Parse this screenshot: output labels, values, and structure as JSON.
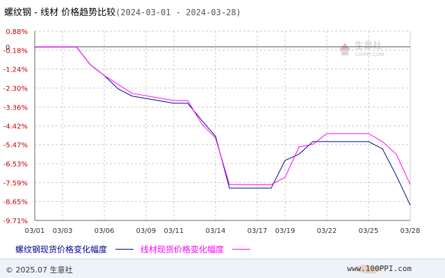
{
  "title": {
    "product": "螺纹钢",
    "separator": " - ",
    "subject": "线材",
    "topic": "价格趋势比较",
    "range": "(2024-03-01 - 2024-03-28)"
  },
  "watermark": {
    "brand": "生意社",
    "url": "100PPI.COM"
  },
  "footer": {
    "copyright": "© 2025.07 生意社",
    "site": "www.100PPI.com"
  },
  "colors": {
    "series1": "#00008b",
    "series2": "#ff00ff",
    "tick_red": "#cc0000",
    "grid": "#c8c8c8"
  },
  "chart_data": {
    "type": "line",
    "x": [
      "03/01",
      "03/04",
      "03/05",
      "03/06",
      "03/07",
      "03/08",
      "03/11",
      "03/12",
      "03/13",
      "03/14",
      "03/15",
      "03/18",
      "03/19",
      "03/20",
      "03/21",
      "03/22",
      "03/25",
      "03/26",
      "03/27",
      "03/28"
    ],
    "xtick_labels": [
      "03/01",
      "03/03",
      "03/06",
      "03/09",
      "03/11",
      "03/14",
      "03/17",
      "03/19",
      "03/22",
      "03/25",
      "03/28"
    ],
    "ytick_labels": [
      "0.88%",
      "-0.18%",
      "-1.24%",
      "-2.30%",
      "-3.36%",
      "-4.42%",
      "-5.47%",
      "-6.53%",
      "-7.59%",
      "-8.65%",
      "-9.71%"
    ],
    "ylim": [
      -9.71,
      0.88
    ],
    "zero_marker": "0",
    "series": [
      {
        "name": "螺纹钢现货价格变化幅度",
        "values": [
          0.0,
          0.0,
          -1.0,
          -1.6,
          -2.35,
          -2.75,
          -3.15,
          -3.15,
          -4.1,
          -5.0,
          -7.9,
          -7.9,
          -6.35,
          -6.0,
          -5.3,
          -5.3,
          -5.3,
          -5.7,
          -7.2,
          -8.85
        ]
      },
      {
        "name": "线材现货价格变化幅度",
        "values": [
          0.0,
          0.0,
          -1.0,
          -1.6,
          -2.1,
          -2.6,
          -3.0,
          -3.0,
          -4.3,
          -5.1,
          -7.7,
          -7.7,
          -7.3,
          -5.6,
          -5.45,
          -4.85,
          -4.85,
          -5.3,
          -6.0,
          -7.7
        ]
      }
    ]
  }
}
